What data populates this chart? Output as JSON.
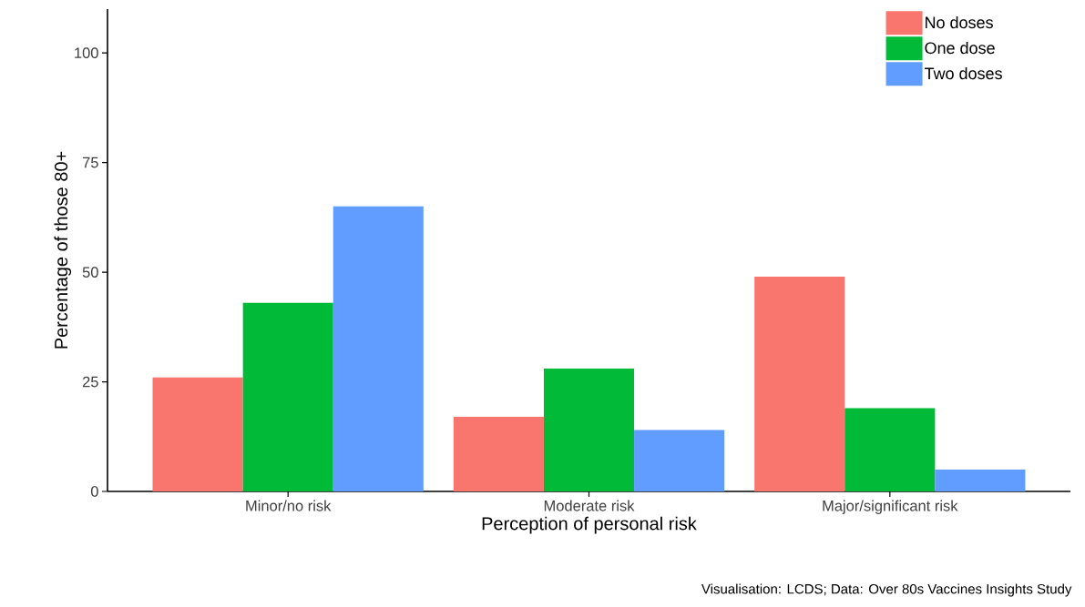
{
  "chart_data": {
    "type": "bar",
    "xlabel": "Perception of personal risk",
    "ylabel": "Percentage of those 80+",
    "categories": [
      "Minor/no risk",
      "Moderate risk",
      "Major/significant risk"
    ],
    "series": [
      {
        "name": "No doses",
        "color": "#f8766d",
        "values": [
          26,
          17,
          49
        ]
      },
      {
        "name": "One dose",
        "color": "#00ba38",
        "values": [
          43,
          28,
          19
        ]
      },
      {
        "name": "Two doses",
        "color": "#619cff",
        "values": [
          65,
          14,
          5
        ]
      }
    ],
    "ylim": [
      0,
      110
    ],
    "yticks": [
      0,
      25,
      50,
      75,
      100
    ],
    "legend": "top right",
    "grid": false,
    "annotations": [
      "Visualisation: LCDS; Data: Over 80s Vaccines Insights Study"
    ]
  }
}
